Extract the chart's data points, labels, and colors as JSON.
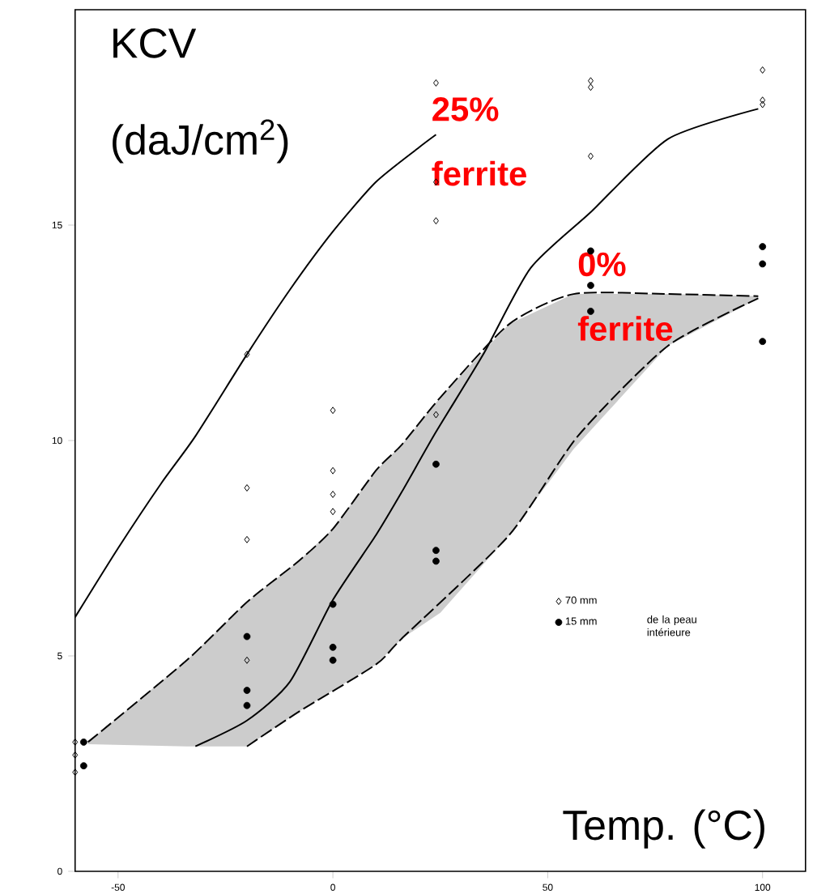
{
  "chart_data": {
    "type": "scatter",
    "xlabel": "Temp. (°C)",
    "ylabel": "KCV (daJ/cm$^{2}$)",
    "legend_title": "de la peau intérieure",
    "xlim": [
      -60,
      110
    ],
    "ylim": [
      0,
      20
    ],
    "xticks": [
      -50,
      0,
      50,
      100
    ],
    "yticks": [
      0,
      5,
      10,
      15
    ],
    "legend": "right",
    "annotations": [
      "25% ferrite",
      "0% ferrite"
    ],
    "series": [
      {
        "type": "line",
        "line_style": "solid",
        "color": "#000000",
        "x": [
          -60,
          -50,
          -40,
          -32,
          -20,
          -10,
          0,
          10,
          20,
          24
        ],
        "values": [
          5.9,
          7.5,
          9.0,
          10.1,
          12.0,
          13.5,
          14.85,
          16.0,
          16.8,
          17.1
        ]
      },
      {
        "type": "line",
        "line_style": "solid",
        "color": "#000000",
        "x": [
          -32,
          -20,
          -10,
          0,
          10,
          16,
          24,
          35,
          46,
          60,
          78,
          99
        ],
        "values": [
          2.9,
          3.5,
          4.4,
          6.3,
          7.8,
          8.8,
          10.2,
          12.0,
          14.0,
          15.3,
          17.0,
          17.7
        ]
      },
      {
        "type": "line",
        "line_style": "dashed",
        "color": "#000000",
        "x": [
          -57,
          -34,
          -20,
          -8,
          0,
          10,
          16,
          25,
          41,
          56,
          78,
          99
        ],
        "values": [
          3.0,
          4.9,
          6.25,
          7.2,
          7.95,
          9.3,
          9.9,
          11.0,
          12.7,
          13.4,
          13.4,
          13.35
        ],
        "upper": [
          3.0,
          4.9,
          6.25,
          7.2,
          7.95,
          9.3,
          9.9,
          11.0,
          12.7,
          13.4,
          13.4,
          13.35
        ],
        "lower": [
          2.95,
          2.9,
          2.9,
          3.7,
          4.2,
          4.8,
          5.4,
          6.0,
          7.8,
          9.8,
          12.2,
          13.3
        ]
      },
      {
        "type": "line",
        "line_style": "dashed",
        "color": "#000000",
        "x": [
          -20,
          -8,
          10,
          16,
          41,
          57,
          78,
          99
        ],
        "values": [
          2.9,
          3.7,
          4.8,
          5.4,
          7.8,
          10.1,
          12.2,
          13.3
        ]
      },
      {
        "name": "70 mm",
        "marker": "diamond",
        "color": "#000000",
        "x": [
          -60,
          -60,
          -60,
          -20,
          -20,
          -20,
          -20,
          0,
          0,
          0,
          0,
          24,
          24,
          24,
          24,
          60,
          60,
          60,
          100,
          100,
          100
        ],
        "values": [
          3.0,
          2.7,
          2.3,
          12.0,
          8.9,
          7.7,
          4.9,
          10.7,
          9.3,
          8.75,
          8.35,
          18.3,
          16.0,
          15.1,
          10.6,
          18.35,
          18.2,
          16.6,
          18.6,
          17.9,
          17.8
        ]
      },
      {
        "name": "15 mm",
        "marker": "circle",
        "color": "#000000",
        "x": [
          -58,
          -58,
          -20,
          -20,
          -20,
          0,
          0,
          0,
          24,
          24,
          24,
          60,
          60,
          60,
          100,
          100,
          100
        ],
        "values": [
          3.0,
          2.45,
          5.45,
          4.2,
          3.85,
          6.2,
          5.2,
          4.9,
          9.45,
          7.45,
          7.2,
          14.4,
          13.6,
          13.0,
          14.5,
          14.1,
          12.3
        ]
      }
    ]
  }
}
